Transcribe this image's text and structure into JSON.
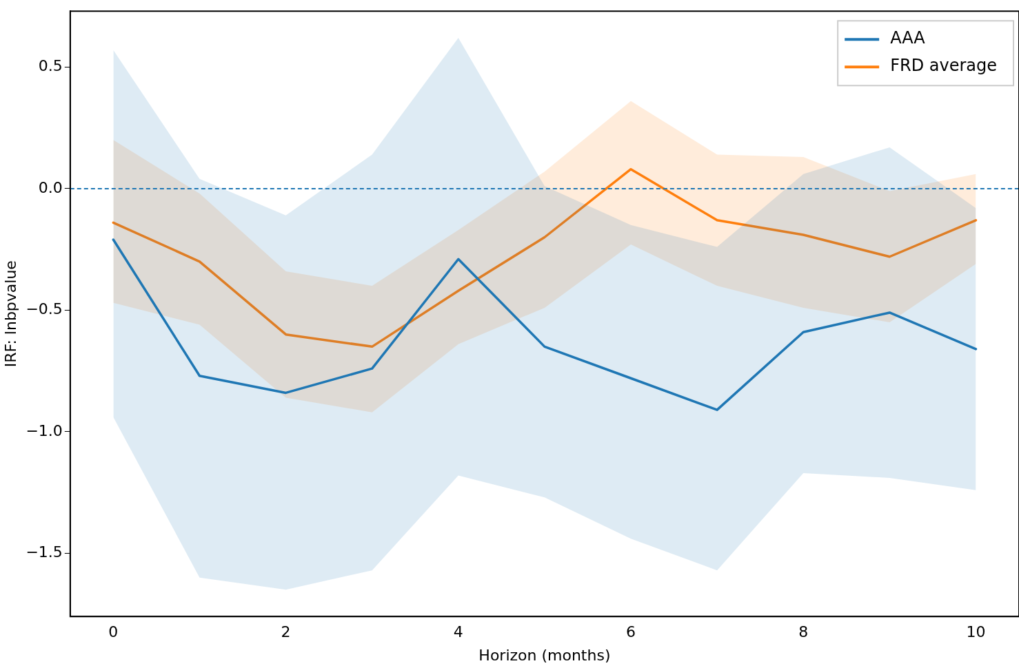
{
  "chart_data": {
    "type": "line",
    "xlabel": "Horizon (months)",
    "ylabel": "IRF: lnbpvalue",
    "x": [
      0,
      1,
      2,
      3,
      4,
      5,
      6,
      7,
      8,
      9,
      10
    ],
    "series": [
      {
        "name": "AAA",
        "color": "#1f77b4",
        "values": [
          -0.21,
          -0.77,
          -0.84,
          -0.74,
          -0.29,
          -0.65,
          -0.78,
          -0.91,
          -0.59,
          -0.51,
          -0.66
        ],
        "lower": [
          -0.94,
          -1.6,
          -1.65,
          -1.57,
          -1.18,
          -1.27,
          -1.44,
          -1.57,
          -1.17,
          -1.19,
          -1.24
        ],
        "upper": [
          0.57,
          0.04,
          -0.11,
          0.14,
          0.62,
          0.01,
          -0.15,
          -0.24,
          0.06,
          0.17,
          -0.08
        ]
      },
      {
        "name": "FRD average",
        "color": "#ff7f0e",
        "values": [
          -0.14,
          -0.3,
          -0.6,
          -0.65,
          -0.42,
          -0.2,
          0.08,
          -0.13,
          -0.19,
          -0.28,
          -0.13
        ],
        "lower": [
          -0.47,
          -0.56,
          -0.86,
          -0.92,
          -0.64,
          -0.49,
          -0.23,
          -0.4,
          -0.49,
          -0.55,
          -0.31
        ],
        "upper": [
          0.2,
          -0.02,
          -0.34,
          -0.4,
          -0.17,
          0.07,
          0.36,
          0.14,
          0.13,
          -0.01,
          0.06
        ]
      }
    ],
    "xlim": [
      -0.5,
      10.5
    ],
    "xticks": [
      0,
      2,
      4,
      6,
      8,
      10
    ],
    "ylim": [
      -1.76,
      0.73
    ],
    "yticks": [
      {
        "value": -1.5,
        "label": "−1.5"
      },
      {
        "value": -1,
        "label": "−1.0"
      },
      {
        "value": -0.5,
        "label": "−0.5"
      },
      {
        "value": 0,
        "label": "0.0"
      },
      {
        "value": 0.5,
        "label": "0.5"
      }
    ],
    "ref_lines": [
      {
        "axis": "y",
        "value": 0,
        "color": "#1f77b4",
        "line_style": "dashed"
      }
    ],
    "legend": "top right",
    "grid": false,
    "marker": "none",
    "line_style": "solid"
  }
}
